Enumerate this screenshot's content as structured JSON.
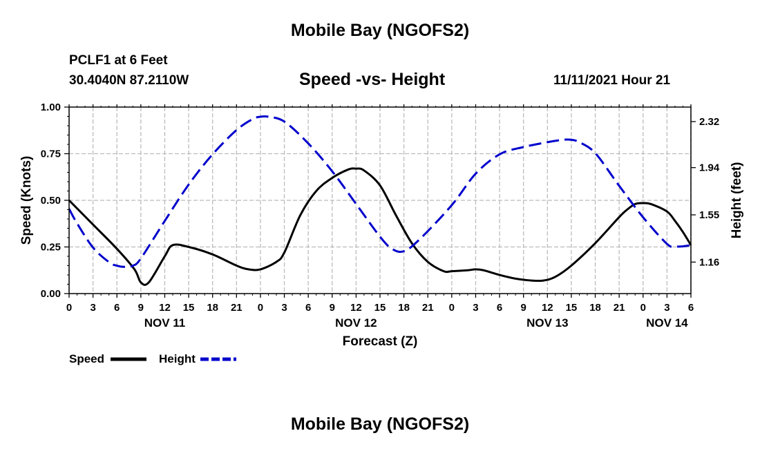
{
  "page": {
    "main_title": "Mobile Bay (NGOFS2)",
    "bottom_title": "Mobile Bay (NGOFS2)"
  },
  "chart_data": {
    "type": "line",
    "title": "Speed -vs- Height",
    "station": "PCLF1 at 6 Feet",
    "coordinates": "30.4040N  87.2110W",
    "timestamp": "11/11/2021 Hour 21",
    "xlabel": "Forecast (Z)",
    "ylabel": "Speed (Knots)",
    "ylabel_right": "Height (feet)",
    "x_range": [
      0,
      78
    ],
    "x_ticks": [
      {
        "x": 0,
        "label": "0"
      },
      {
        "x": 3,
        "label": "3"
      },
      {
        "x": 6,
        "label": "6"
      },
      {
        "x": 9,
        "label": "9"
      },
      {
        "x": 12,
        "label": "12"
      },
      {
        "x": 15,
        "label": "15"
      },
      {
        "x": 18,
        "label": "18"
      },
      {
        "x": 21,
        "label": "21"
      },
      {
        "x": 24,
        "label": "0"
      },
      {
        "x": 27,
        "label": "3"
      },
      {
        "x": 30,
        "label": "6"
      },
      {
        "x": 33,
        "label": "9"
      },
      {
        "x": 36,
        "label": "12"
      },
      {
        "x": 39,
        "label": "15"
      },
      {
        "x": 42,
        "label": "18"
      },
      {
        "x": 45,
        "label": "21"
      },
      {
        "x": 48,
        "label": "0"
      },
      {
        "x": 51,
        "label": "3"
      },
      {
        "x": 54,
        "label": "6"
      },
      {
        "x": 57,
        "label": "9"
      },
      {
        "x": 60,
        "label": "12"
      },
      {
        "x": 63,
        "label": "15"
      },
      {
        "x": 66,
        "label": "18"
      },
      {
        "x": 69,
        "label": "21"
      },
      {
        "x": 72,
        "label": "0"
      },
      {
        "x": 75,
        "label": "3"
      },
      {
        "x": 78,
        "label": "6"
      }
    ],
    "date_labels": [
      {
        "x": 12,
        "label": "NOV 11"
      },
      {
        "x": 36,
        "label": "NOV 12"
      },
      {
        "x": 60,
        "label": "NOV 13"
      },
      {
        "x": 75,
        "label": "NOV 14"
      }
    ],
    "ylim": [
      0,
      1
    ],
    "y_ticks": [
      {
        "v": 0,
        "label": "0.00"
      },
      {
        "v": 0.25,
        "label": "0.25"
      },
      {
        "v": 0.5,
        "label": "0.50"
      },
      {
        "v": 0.75,
        "label": "0.75"
      },
      {
        "v": 1.0,
        "label": "1.00"
      }
    ],
    "ylim_right": [
      0.9,
      2.44
    ],
    "y_ticks_right": [
      {
        "v": 1.16,
        "label": "1.16"
      },
      {
        "v": 1.55,
        "label": "1.55"
      },
      {
        "v": 1.94,
        "label": "1.94"
      },
      {
        "v": 2.32,
        "label": "2.32"
      }
    ],
    "grid": true,
    "legend": {
      "position": "bottom-left"
    },
    "series": [
      {
        "name": "Speed",
        "axis": "left",
        "color": "#000000",
        "dash": "solid",
        "x": [
          0,
          3,
          6,
          8.2,
          9,
          10,
          12,
          13,
          15,
          18,
          21,
          22.5,
          24,
          26,
          27,
          29,
          31,
          33,
          35,
          36,
          37,
          39,
          41,
          43,
          45,
          47,
          48,
          50,
          51,
          52,
          54,
          56,
          58,
          59.5,
          61,
          63,
          66,
          69,
          70,
          71,
          72,
          73,
          75,
          76,
          77,
          78
        ],
        "y": [
          0.5,
          0.37,
          0.24,
          0.13,
          0.06,
          0.06,
          0.2,
          0.26,
          0.25,
          0.21,
          0.15,
          0.13,
          0.13,
          0.17,
          0.22,
          0.42,
          0.55,
          0.62,
          0.665,
          0.67,
          0.66,
          0.58,
          0.42,
          0.27,
          0.17,
          0.12,
          0.12,
          0.125,
          0.13,
          0.125,
          0.1,
          0.08,
          0.07,
          0.07,
          0.09,
          0.15,
          0.27,
          0.41,
          0.45,
          0.48,
          0.485,
          0.48,
          0.44,
          0.39,
          0.33,
          0.26
        ]
      },
      {
        "name": "Height",
        "axis": "right",
        "color": "#0000cc",
        "dash": "dashed",
        "x": [
          0,
          1,
          3,
          5,
          6,
          7,
          8,
          9,
          12,
          15,
          18,
          21,
          23,
          24,
          25,
          27,
          30,
          33,
          36,
          39,
          40.5,
          42,
          44,
          48,
          51,
          54,
          57,
          60,
          62,
          63,
          64,
          66,
          69,
          72,
          75,
          76,
          77,
          78
        ],
        "y": [
          1.6,
          1.48,
          1.28,
          1.16,
          1.13,
          1.12,
          1.13,
          1.19,
          1.5,
          1.8,
          2.05,
          2.25,
          2.34,
          2.36,
          2.36,
          2.32,
          2.14,
          1.91,
          1.64,
          1.37,
          1.27,
          1.25,
          1.35,
          1.63,
          1.89,
          2.05,
          2.11,
          2.15,
          2.17,
          2.17,
          2.15,
          2.06,
          1.79,
          1.53,
          1.31,
          1.29,
          1.29,
          1.3
        ]
      }
    ]
  }
}
